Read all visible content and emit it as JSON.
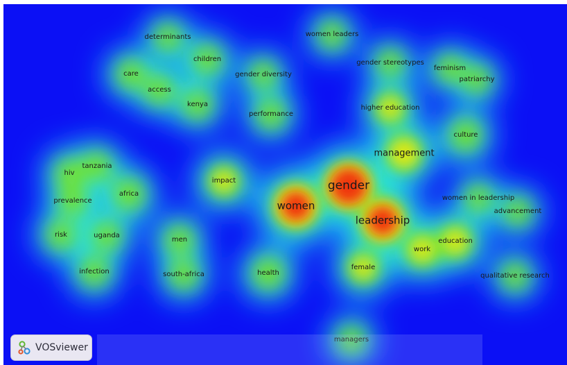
{
  "app": {
    "name": "VOSviewer",
    "logo_icon": "vosviewer-logo-icon"
  },
  "density_colors": {
    "background": "#0b10f5",
    "low": "#22e6ea",
    "mid": "#7be31e",
    "high": "#f2ea12",
    "peak": "#ef2a07"
  },
  "keywords": [
    {
      "id": "gender",
      "label": "gender",
      "weight": 1.0
    },
    {
      "id": "women",
      "label": "women",
      "weight": 0.85
    },
    {
      "id": "leadership",
      "label": "leadership",
      "weight": 0.85
    },
    {
      "id": "management",
      "label": "management",
      "weight": 0.6
    },
    {
      "id": "education",
      "label": "education",
      "weight": 0.5
    },
    {
      "id": "work",
      "label": "work",
      "weight": 0.5
    },
    {
      "id": "female",
      "label": "female",
      "weight": 0.45
    },
    {
      "id": "higher-education",
      "label": "higher education",
      "weight": 0.45
    },
    {
      "id": "impact",
      "label": "impact",
      "weight": 0.45
    },
    {
      "id": "culture",
      "label": "culture",
      "weight": 0.4
    },
    {
      "id": "health",
      "label": "health",
      "weight": 0.35
    },
    {
      "id": "africa",
      "label": "africa",
      "weight": 0.4
    },
    {
      "id": "tanzania",
      "label": "tanzania",
      "weight": 0.35
    },
    {
      "id": "hiv",
      "label": "hiv",
      "weight": 0.35
    },
    {
      "id": "prevalence",
      "label": "prevalence",
      "weight": 0.4
    },
    {
      "id": "risk",
      "label": "risk",
      "weight": 0.4
    },
    {
      "id": "uganda",
      "label": "uganda",
      "weight": 0.4
    },
    {
      "id": "infection",
      "label": "infection",
      "weight": 0.35
    },
    {
      "id": "men",
      "label": "men",
      "weight": 0.35
    },
    {
      "id": "south-africa",
      "label": "south-africa",
      "weight": 0.35
    },
    {
      "id": "determinants",
      "label": "determinants",
      "weight": 0.35
    },
    {
      "id": "children",
      "label": "children",
      "weight": 0.4
    },
    {
      "id": "care",
      "label": "care",
      "weight": 0.4
    },
    {
      "id": "access",
      "label": "access",
      "weight": 0.4
    },
    {
      "id": "kenya",
      "label": "kenya",
      "weight": 0.4
    },
    {
      "id": "gender-diversity",
      "label": "gender diversity",
      "weight": 0.3
    },
    {
      "id": "performance",
      "label": "performance",
      "weight": 0.4
    },
    {
      "id": "women-leaders",
      "label": "women leaders",
      "weight": 0.25
    },
    {
      "id": "gender-stereotypes",
      "label": "gender stereotypes",
      "weight": 0.3
    },
    {
      "id": "feminism",
      "label": "feminism",
      "weight": 0.35
    },
    {
      "id": "patriarchy",
      "label": "patriarchy",
      "weight": 0.35
    },
    {
      "id": "women-in-leadership",
      "label": "women in leadership",
      "weight": 0.3
    },
    {
      "id": "advancement",
      "label": "advancement",
      "weight": 0.3
    },
    {
      "id": "qualitative-research",
      "label": "qualitative research",
      "weight": 0.3
    },
    {
      "id": "managers",
      "label": "managers",
      "weight": 0.25
    }
  ]
}
